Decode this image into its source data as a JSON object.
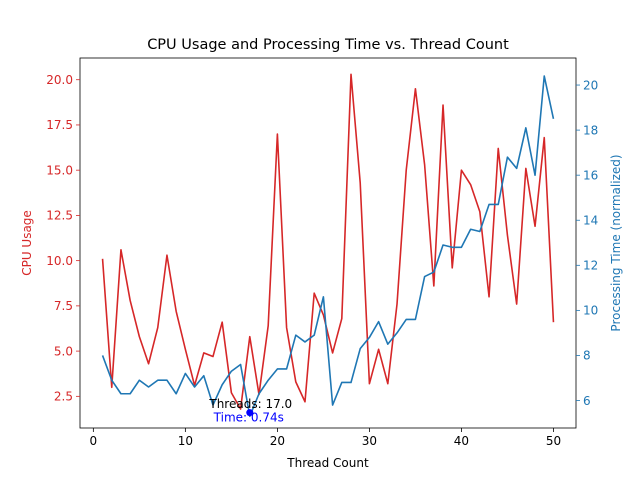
{
  "chart_data": {
    "type": "line",
    "title": "CPU Usage and Processing Time vs. Thread Count",
    "xlabel": "Thread Count",
    "ylabel_left": "CPU Usage",
    "ylabel_right": "Processing Time (normalized)",
    "xlim": [
      -1.45,
      52.45
    ],
    "ylim_left": [
      0.75,
      21.2
    ],
    "ylim_right": [
      4.78,
      21.2
    ],
    "xticks": [
      0,
      10,
      20,
      30,
      40,
      50
    ],
    "yticks_left": [
      2.5,
      5.0,
      7.5,
      10.0,
      12.5,
      15.0,
      17.5,
      20.0
    ],
    "yticks_right": [
      6,
      8,
      10,
      12,
      14,
      16,
      18,
      20
    ],
    "grid": false,
    "x": [
      1,
      2,
      3,
      4,
      5,
      6,
      7,
      8,
      9,
      10,
      11,
      12,
      13,
      14,
      15,
      16,
      17,
      18,
      19,
      20,
      21,
      22,
      23,
      24,
      25,
      26,
      27,
      28,
      29,
      30,
      31,
      32,
      33,
      34,
      35,
      36,
      37,
      38,
      39,
      40,
      41,
      42,
      43,
      44,
      45,
      46,
      47,
      48,
      49,
      50
    ],
    "series": [
      {
        "name": "CPU Usage",
        "axis": "left",
        "color": "#d62728",
        "values": [
          10.1,
          3.0,
          10.6,
          7.8,
          5.8,
          4.3,
          6.3,
          10.3,
          7.2,
          5.1,
          3.1,
          4.9,
          4.7,
          6.6,
          2.7,
          1.8,
          5.8,
          2.6,
          6.4,
          17.0,
          6.3,
          3.3,
          2.2,
          8.2,
          7.0,
          4.9,
          6.8,
          20.3,
          14.3,
          3.2,
          5.1,
          3.2,
          7.6,
          15.0,
          19.5,
          15.3,
          8.6,
          18.6,
          9.6,
          15.0,
          14.2,
          12.7,
          8.0,
          16.2,
          11.4,
          7.6,
          15.1,
          11.9,
          16.8,
          6.6
        ]
      },
      {
        "name": "Processing Time (normalized)",
        "axis": "right",
        "color": "#1f77b4",
        "values": [
          8.0,
          6.9,
          6.3,
          6.3,
          6.9,
          6.6,
          6.9,
          6.9,
          6.3,
          7.2,
          6.6,
          7.1,
          5.8,
          6.7,
          7.3,
          7.6,
          5.3,
          6.3,
          6.9,
          7.4,
          7.4,
          8.9,
          8.6,
          8.9,
          10.6,
          5.8,
          6.8,
          6.8,
          8.3,
          8.8,
          9.5,
          8.5,
          9.0,
          9.6,
          9.6,
          11.5,
          11.7,
          12.9,
          12.8,
          12.8,
          13.6,
          13.5,
          14.7,
          14.7,
          16.8,
          16.3,
          18.1,
          16.0,
          20.4,
          18.5
        ]
      }
    ],
    "annotation": {
      "x": 17.0,
      "y": 1.6,
      "label_threads": "Threads: 17.0",
      "label_time": "Time: 0.74s",
      "marker_color": "#0000ff"
    }
  }
}
